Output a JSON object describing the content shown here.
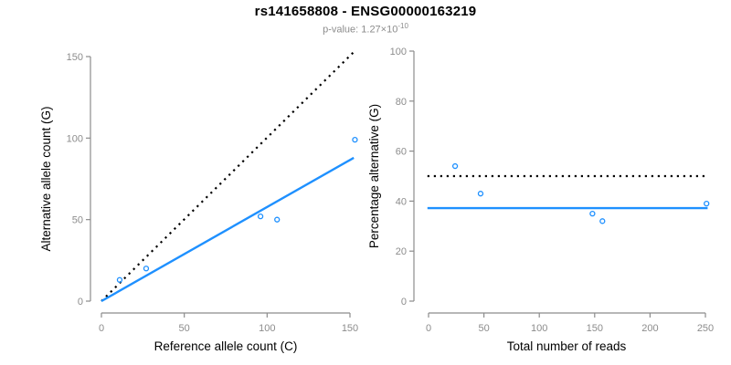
{
  "header": {
    "title": "rs141658808 - ENSG00000163219",
    "subtitle_prefix": "p-value: 1.27×10",
    "subtitle_exponent": "-10"
  },
  "colors": {
    "accent_blue": "#1E90FF",
    "axis_gray": "#8c8c8c",
    "tick_text_gray": "#8c8c8c",
    "title_black": "#000000",
    "dotted_line_black": "#000000"
  },
  "chart_data": [
    {
      "type": "scatter",
      "name": "allele-count-scatter",
      "xlabel": "Reference allele count (C)",
      "ylabel": "Alternative allele count (G)",
      "x_ticks": [
        0,
        50,
        100,
        150
      ],
      "y_ticks": [
        0,
        50,
        100,
        150
      ],
      "xlim": [
        0,
        155
      ],
      "ylim": [
        0,
        153
      ],
      "grid": false,
      "points": [
        [
          11,
          13
        ],
        [
          27,
          20
        ],
        [
          96,
          52
        ],
        [
          106,
          50
        ],
        [
          153,
          99
        ]
      ],
      "lines": [
        {
          "name": "identity-line",
          "style": "dotted",
          "color": "#000000",
          "from": [
            0,
            0
          ],
          "to": [
            152.3,
            152.8
          ]
        },
        {
          "name": "fit-line",
          "style": "solid",
          "color": "#1E90FF",
          "from": [
            0,
            0
          ],
          "to": [
            152.3,
            87.9
          ]
        }
      ]
    },
    {
      "type": "scatter",
      "name": "percentage-alternative-scatter",
      "xlabel": "Total number of reads",
      "ylabel": "Percentage alternative (G)",
      "x_ticks": [
        0,
        50,
        100,
        150,
        200,
        250
      ],
      "y_ticks": [
        0,
        20,
        40,
        60,
        80,
        100
      ],
      "xlim": [
        0,
        253
      ],
      "ylim": [
        0,
        100
      ],
      "grid": false,
      "points": [
        [
          24,
          54
        ],
        [
          47,
          43
        ],
        [
          148,
          35
        ],
        [
          157,
          32
        ],
        [
          251,
          39
        ]
      ],
      "lines": [
        {
          "name": "expected-50-percent-line",
          "style": "dotted",
          "color": "#000000",
          "from": [
            -1,
            50
          ],
          "to": [
            252,
            50
          ]
        },
        {
          "name": "fit-line",
          "style": "solid",
          "color": "#1E90FF",
          "from": [
            -1,
            37.2
          ],
          "to": [
            252,
            37.2
          ]
        }
      ]
    }
  ]
}
